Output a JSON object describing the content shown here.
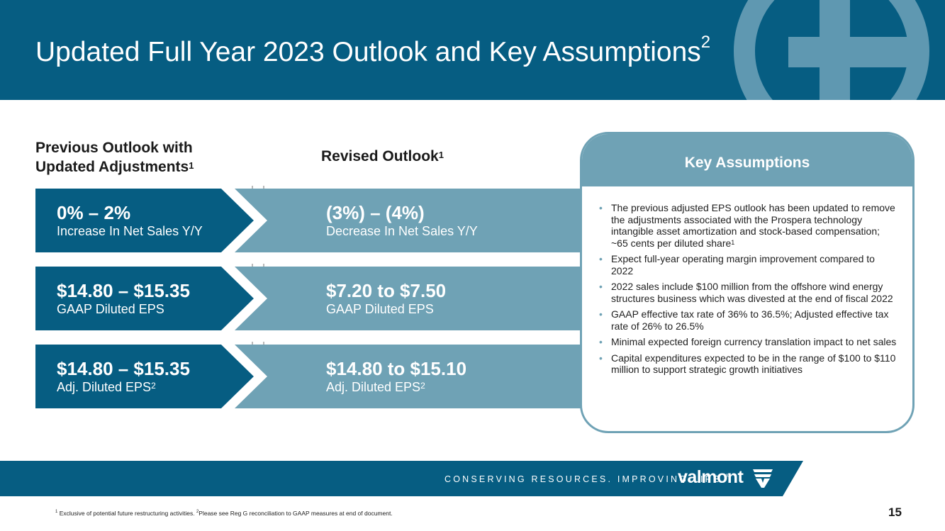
{
  "header": {
    "title": "Updated Full Year 2023 Outlook and Key Assumptions",
    "title_sup": "2"
  },
  "columns": {
    "previous_line1": "Previous Outlook with",
    "previous_line2": "Updated Adjustments",
    "previous_sup": "1",
    "revised": "Revised Outlook",
    "revised_sup": "1"
  },
  "rows": [
    {
      "prev_value": "0% – 2%",
      "prev_label": "Increase In Net Sales Y/Y",
      "rev_value": "(3%) – (4%)",
      "rev_label": "Decrease In Net Sales Y/Y"
    },
    {
      "prev_value": "$14.80 – $15.35",
      "prev_label": "GAAP Diluted EPS",
      "rev_value": "$7.20 to $7.50",
      "rev_label": "GAAP Diluted EPS"
    },
    {
      "prev_value": "$14.80 – $15.35",
      "prev_label": "Adj. Diluted EPS",
      "prev_sup": "2",
      "rev_value": "$14.80 to $15.10",
      "rev_label": "Adj. Diluted EPS",
      "rev_sup": "2"
    }
  ],
  "key_assumptions": {
    "title": "Key Assumptions",
    "items": [
      "The previous adjusted EPS outlook has been updated to remove the adjustments associated with the Prospera technology intangible asset amortization and stock-based compensation; ~65 cents per diluted share",
      "Expect full-year operating margin improvement compared to 2022",
      "2022 sales include $100 million from the offshore wind energy structures business which was divested at the end of fiscal 2022",
      "GAAP effective tax rate of 36% to 36.5%; Adjusted effective tax rate of 26% to 26.5%",
      "Minimal expected foreign currency translation impact to net sales",
      "Capital expenditures expected to be in the range of $100 to $110 million to support strategic growth initiatives"
    ],
    "item0_sup": "1"
  },
  "footer": {
    "tagline": "CONSERVING RESOURCES. IMPROVING LIFE.",
    "tagline_mark": "®",
    "brand": "valmont",
    "footnote_sup1": "1",
    "footnote_text1": " Exclusive of potential future restructuring activities. ",
    "footnote_sup2": "2",
    "footnote_text2": "Please see Reg G reconciliation to GAAP measures at end of document.",
    "page_number": "15"
  },
  "colors": {
    "dark_blue": "#065d82",
    "light_blue": "#6fa2b5",
    "deco_circle": "#5f98b1"
  },
  "icons": [
    "valmont-logo-icon"
  ]
}
